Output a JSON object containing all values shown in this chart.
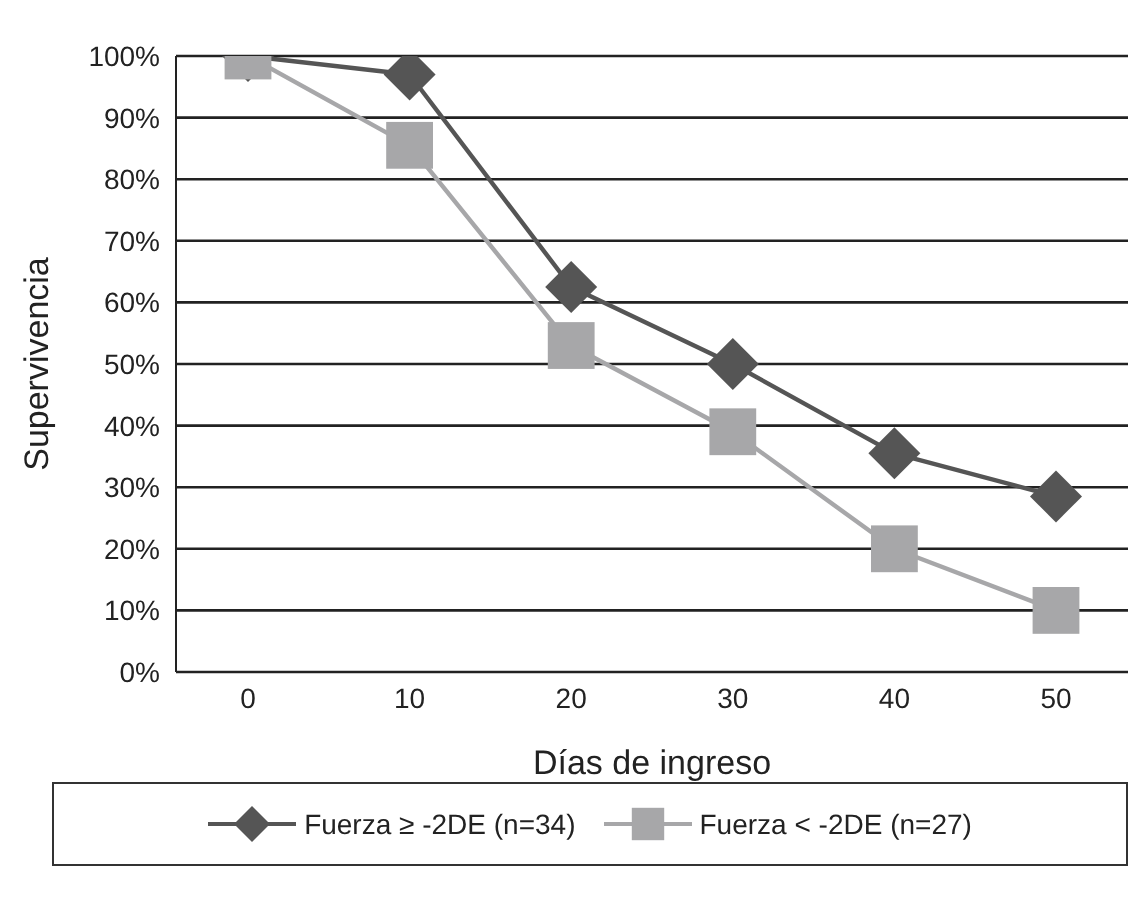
{
  "chart_data": {
    "type": "line",
    "xlabel": "Días de ingreso",
    "ylabel": "Supervivencia",
    "categories": [
      "0",
      "10",
      "20",
      "30",
      "40",
      "50"
    ],
    "series": [
      {
        "name": "Fuerza ≥ -2DE (n=34)",
        "color": "#555555",
        "marker": "diamond",
        "values": [
          100,
          97,
          62.5,
          50,
          35.5,
          28.5
        ]
      },
      {
        "name": "Fuerza < -2DE (n=27)",
        "color": "#a7a7a9",
        "marker": "square",
        "values": [
          100,
          85.5,
          53,
          39,
          20,
          10
        ]
      }
    ],
    "ylim": [
      0,
      100
    ],
    "yticks": [
      {
        "value": 0,
        "label": "0%"
      },
      {
        "value": 10,
        "label": "10%"
      },
      {
        "value": 20,
        "label": "20%"
      },
      {
        "value": 30,
        "label": "30%"
      },
      {
        "value": 40,
        "label": "40%"
      },
      {
        "value": 50,
        "label": "50%"
      },
      {
        "value": 60,
        "label": "60%"
      },
      {
        "value": 70,
        "label": "70%"
      },
      {
        "value": 80,
        "label": "80%"
      },
      {
        "value": 90,
        "label": "90%"
      },
      {
        "value": 100,
        "label": "100%"
      }
    ],
    "grid": "y",
    "legend": "bottom",
    "line_style": "solid"
  }
}
